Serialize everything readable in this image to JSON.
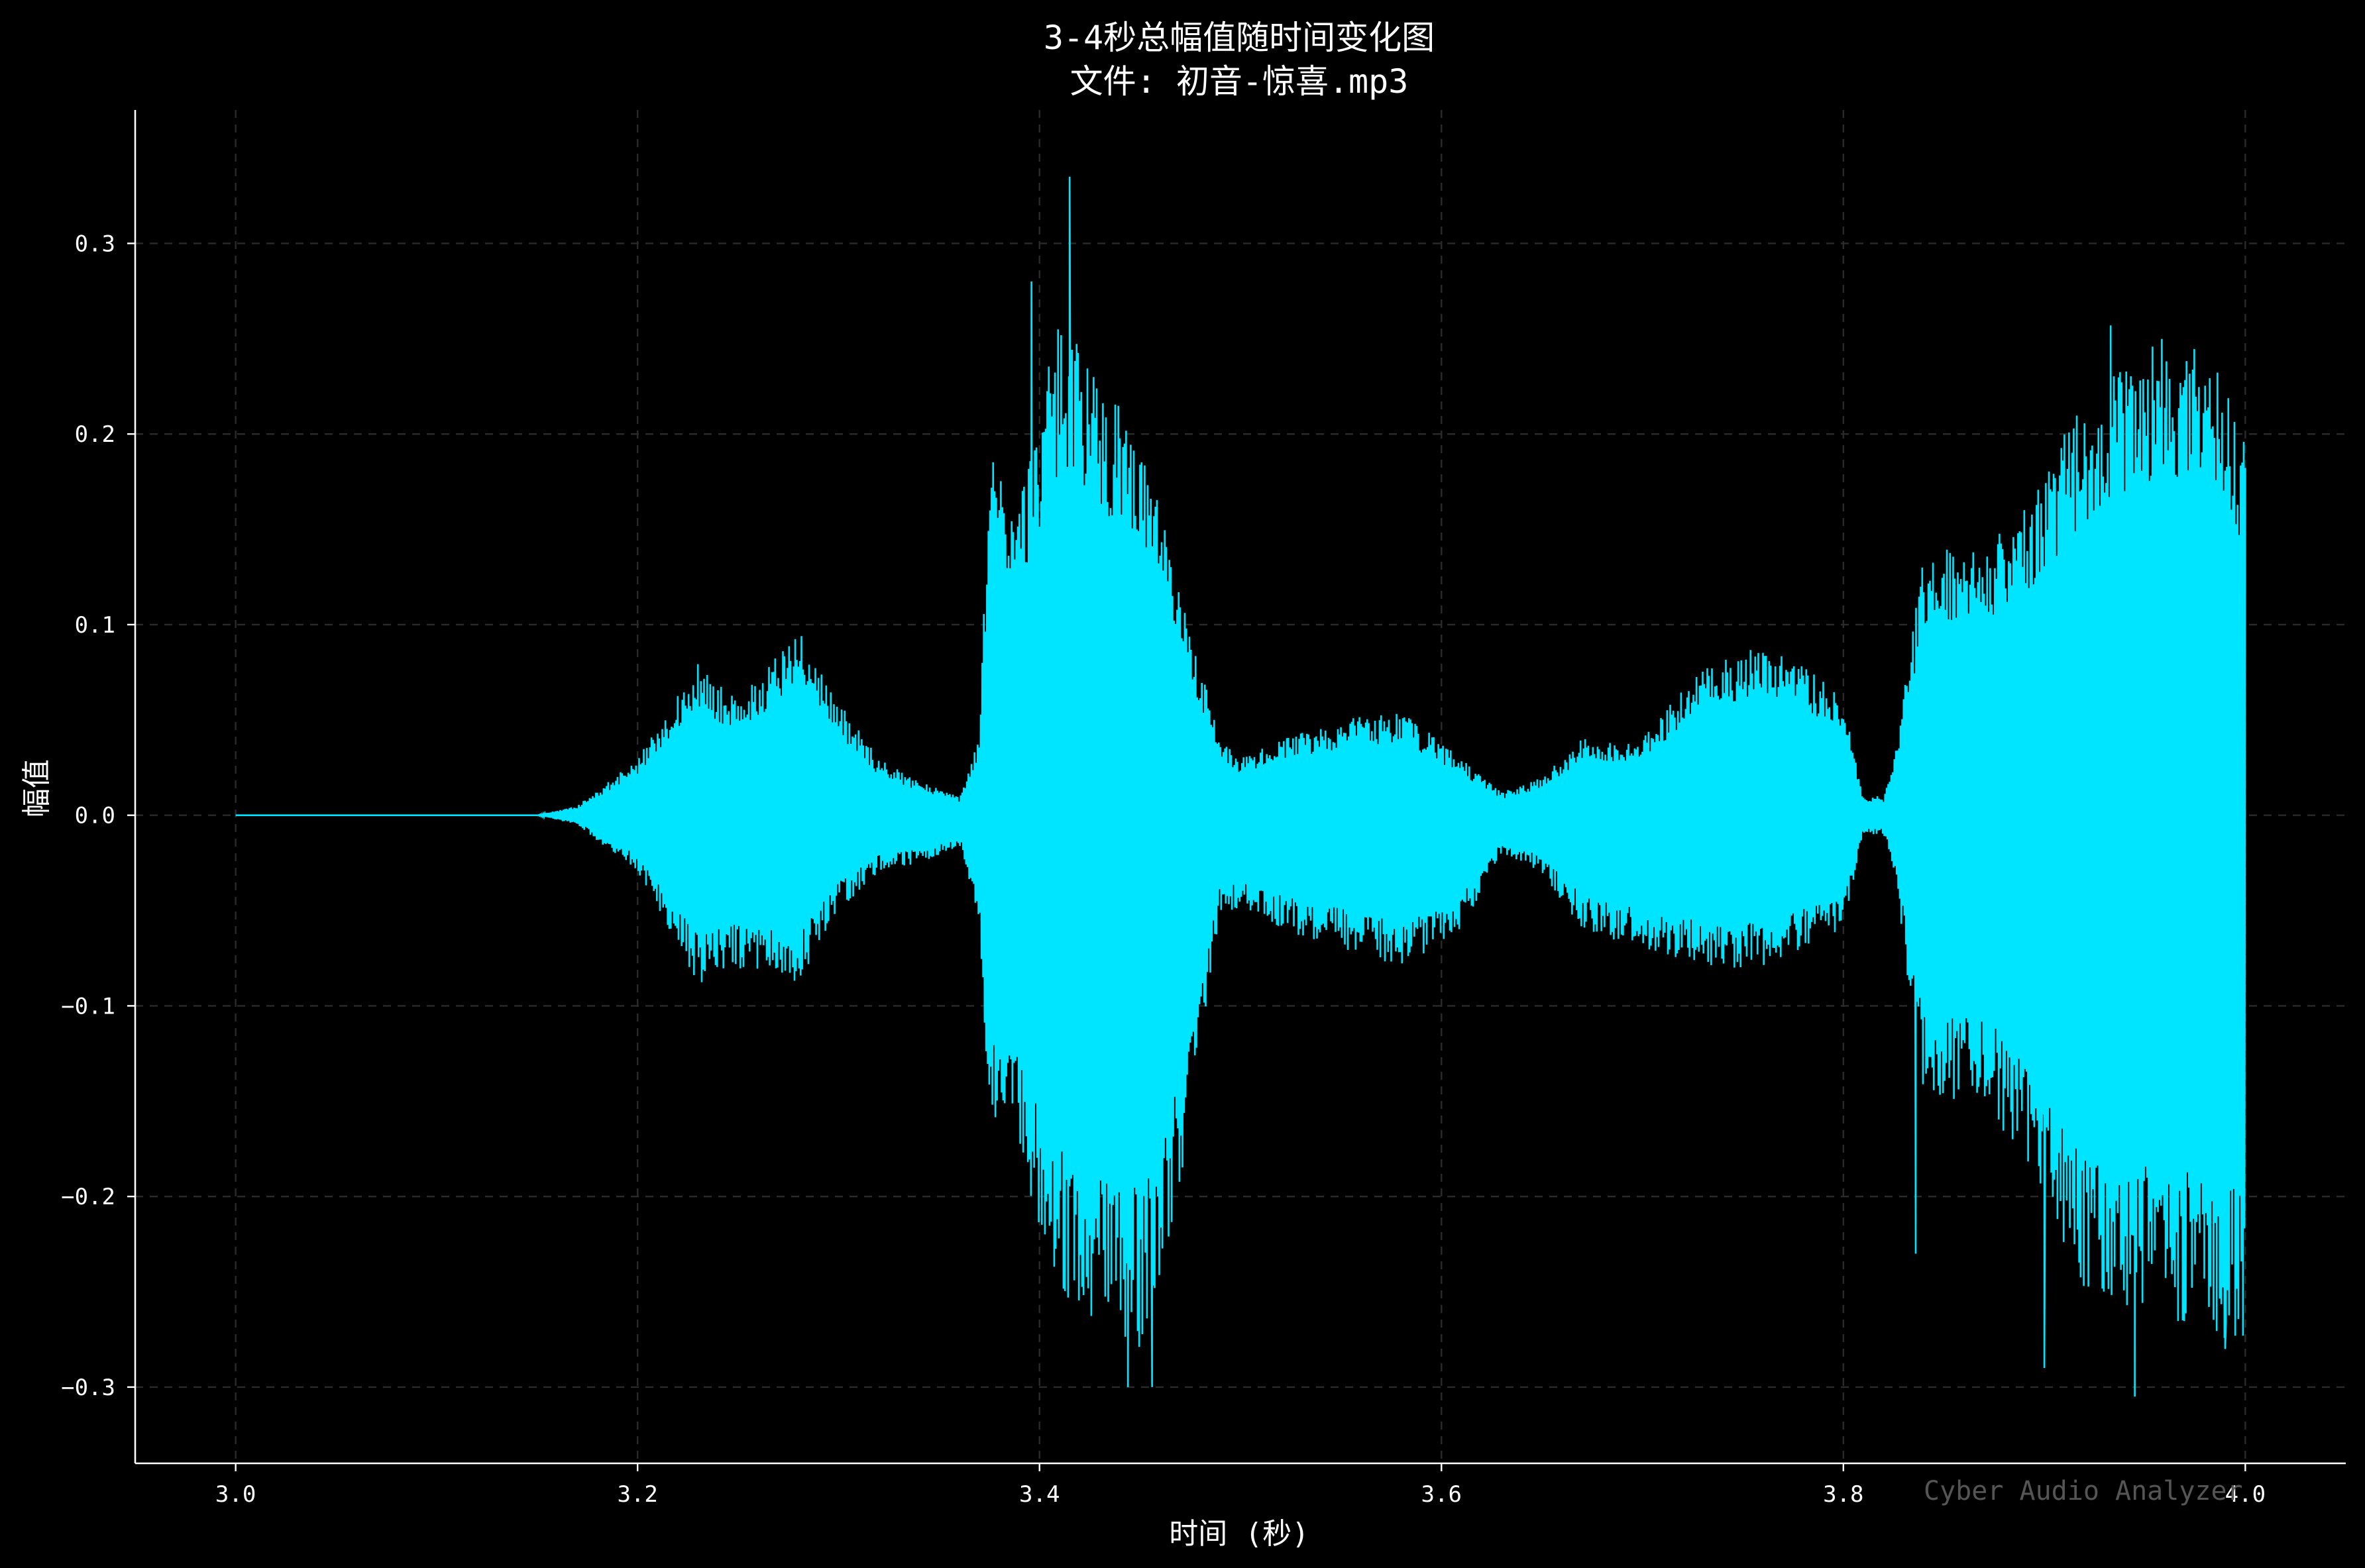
{
  "chart_data": {
    "type": "line",
    "title": "3-4秒总幅值随时间变化图",
    "subtitle": "文件: 初音-惊喜.mp3",
    "xlabel": "时间 (秒)",
    "ylabel": "幅值",
    "xlim": [
      2.95,
      4.05
    ],
    "ylim": [
      -0.34,
      0.37
    ],
    "x_ticks": [
      3.0,
      3.2,
      3.4,
      3.6,
      3.8,
      4.0
    ],
    "x_tick_labels": [
      "3.0",
      "3.2",
      "3.4",
      "3.6",
      "3.8",
      "4.0"
    ],
    "y_ticks": [
      -0.3,
      -0.2,
      -0.1,
      0.0,
      0.1,
      0.2,
      0.3
    ],
    "y_tick_labels": [
      "−0.3",
      "−0.2",
      "−0.1",
      "0.0",
      "0.1",
      "0.2",
      "0.3"
    ],
    "grid": true,
    "background_color": "#000000",
    "series": [
      {
        "color": "#00e5ff",
        "envelope": {
          "x": [
            3.0,
            3.15,
            3.17,
            3.2,
            3.23,
            3.25,
            3.28,
            3.3,
            3.32,
            3.34,
            3.355,
            3.36,
            3.37,
            3.375,
            3.39,
            3.41,
            3.43,
            3.45,
            3.47,
            3.49,
            3.5,
            3.52,
            3.55,
            3.58,
            3.61,
            3.63,
            3.65,
            3.67,
            3.7,
            3.73,
            3.76,
            3.78,
            3.8,
            3.81,
            3.82,
            3.825,
            3.84,
            3.87,
            3.9,
            3.92,
            3.95,
            3.98,
            4.0
          ],
          "upper": [
            0.0,
            0.0,
            0.005,
            0.03,
            0.08,
            0.06,
            0.1,
            0.06,
            0.03,
            0.018,
            0.012,
            0.01,
            0.04,
            0.19,
            0.17,
            0.26,
            0.23,
            0.2,
            0.12,
            0.04,
            0.03,
            0.04,
            0.05,
            0.055,
            0.03,
            0.012,
            0.02,
            0.04,
            0.04,
            0.08,
            0.09,
            0.08,
            0.06,
            0.01,
            0.01,
            0.03,
            0.14,
            0.14,
            0.18,
            0.22,
            0.25,
            0.25,
            0.2
          ],
          "lower": [
            0.0,
            0.0,
            -0.005,
            -0.03,
            -0.09,
            -0.08,
            -0.09,
            -0.05,
            -0.03,
            -0.025,
            -0.02,
            -0.015,
            -0.06,
            -0.16,
            -0.18,
            -0.25,
            -0.27,
            -0.28,
            -0.2,
            -0.05,
            -0.05,
            -0.06,
            -0.07,
            -0.08,
            -0.06,
            -0.02,
            -0.03,
            -0.06,
            -0.07,
            -0.08,
            -0.08,
            -0.07,
            -0.06,
            -0.01,
            -0.01,
            -0.03,
            -0.15,
            -0.15,
            -0.2,
            -0.25,
            -0.26,
            -0.27,
            -0.28
          ]
        },
        "peaks": [
          {
            "x": 3.396,
            "y": 0.28
          },
          {
            "x": 3.415,
            "y": 0.335
          },
          {
            "x": 3.444,
            "y": -0.3
          },
          {
            "x": 3.456,
            "y": -0.3
          },
          {
            "x": 3.836,
            "y": -0.23
          },
          {
            "x": 3.9,
            "y": -0.29
          },
          {
            "x": 3.933,
            "y": 0.257
          },
          {
            "x": 3.99,
            "y": -0.28
          },
          {
            "x": 3.945,
            "y": -0.305
          }
        ]
      }
    ]
  },
  "watermark": "Cyber Audio Analyzer"
}
